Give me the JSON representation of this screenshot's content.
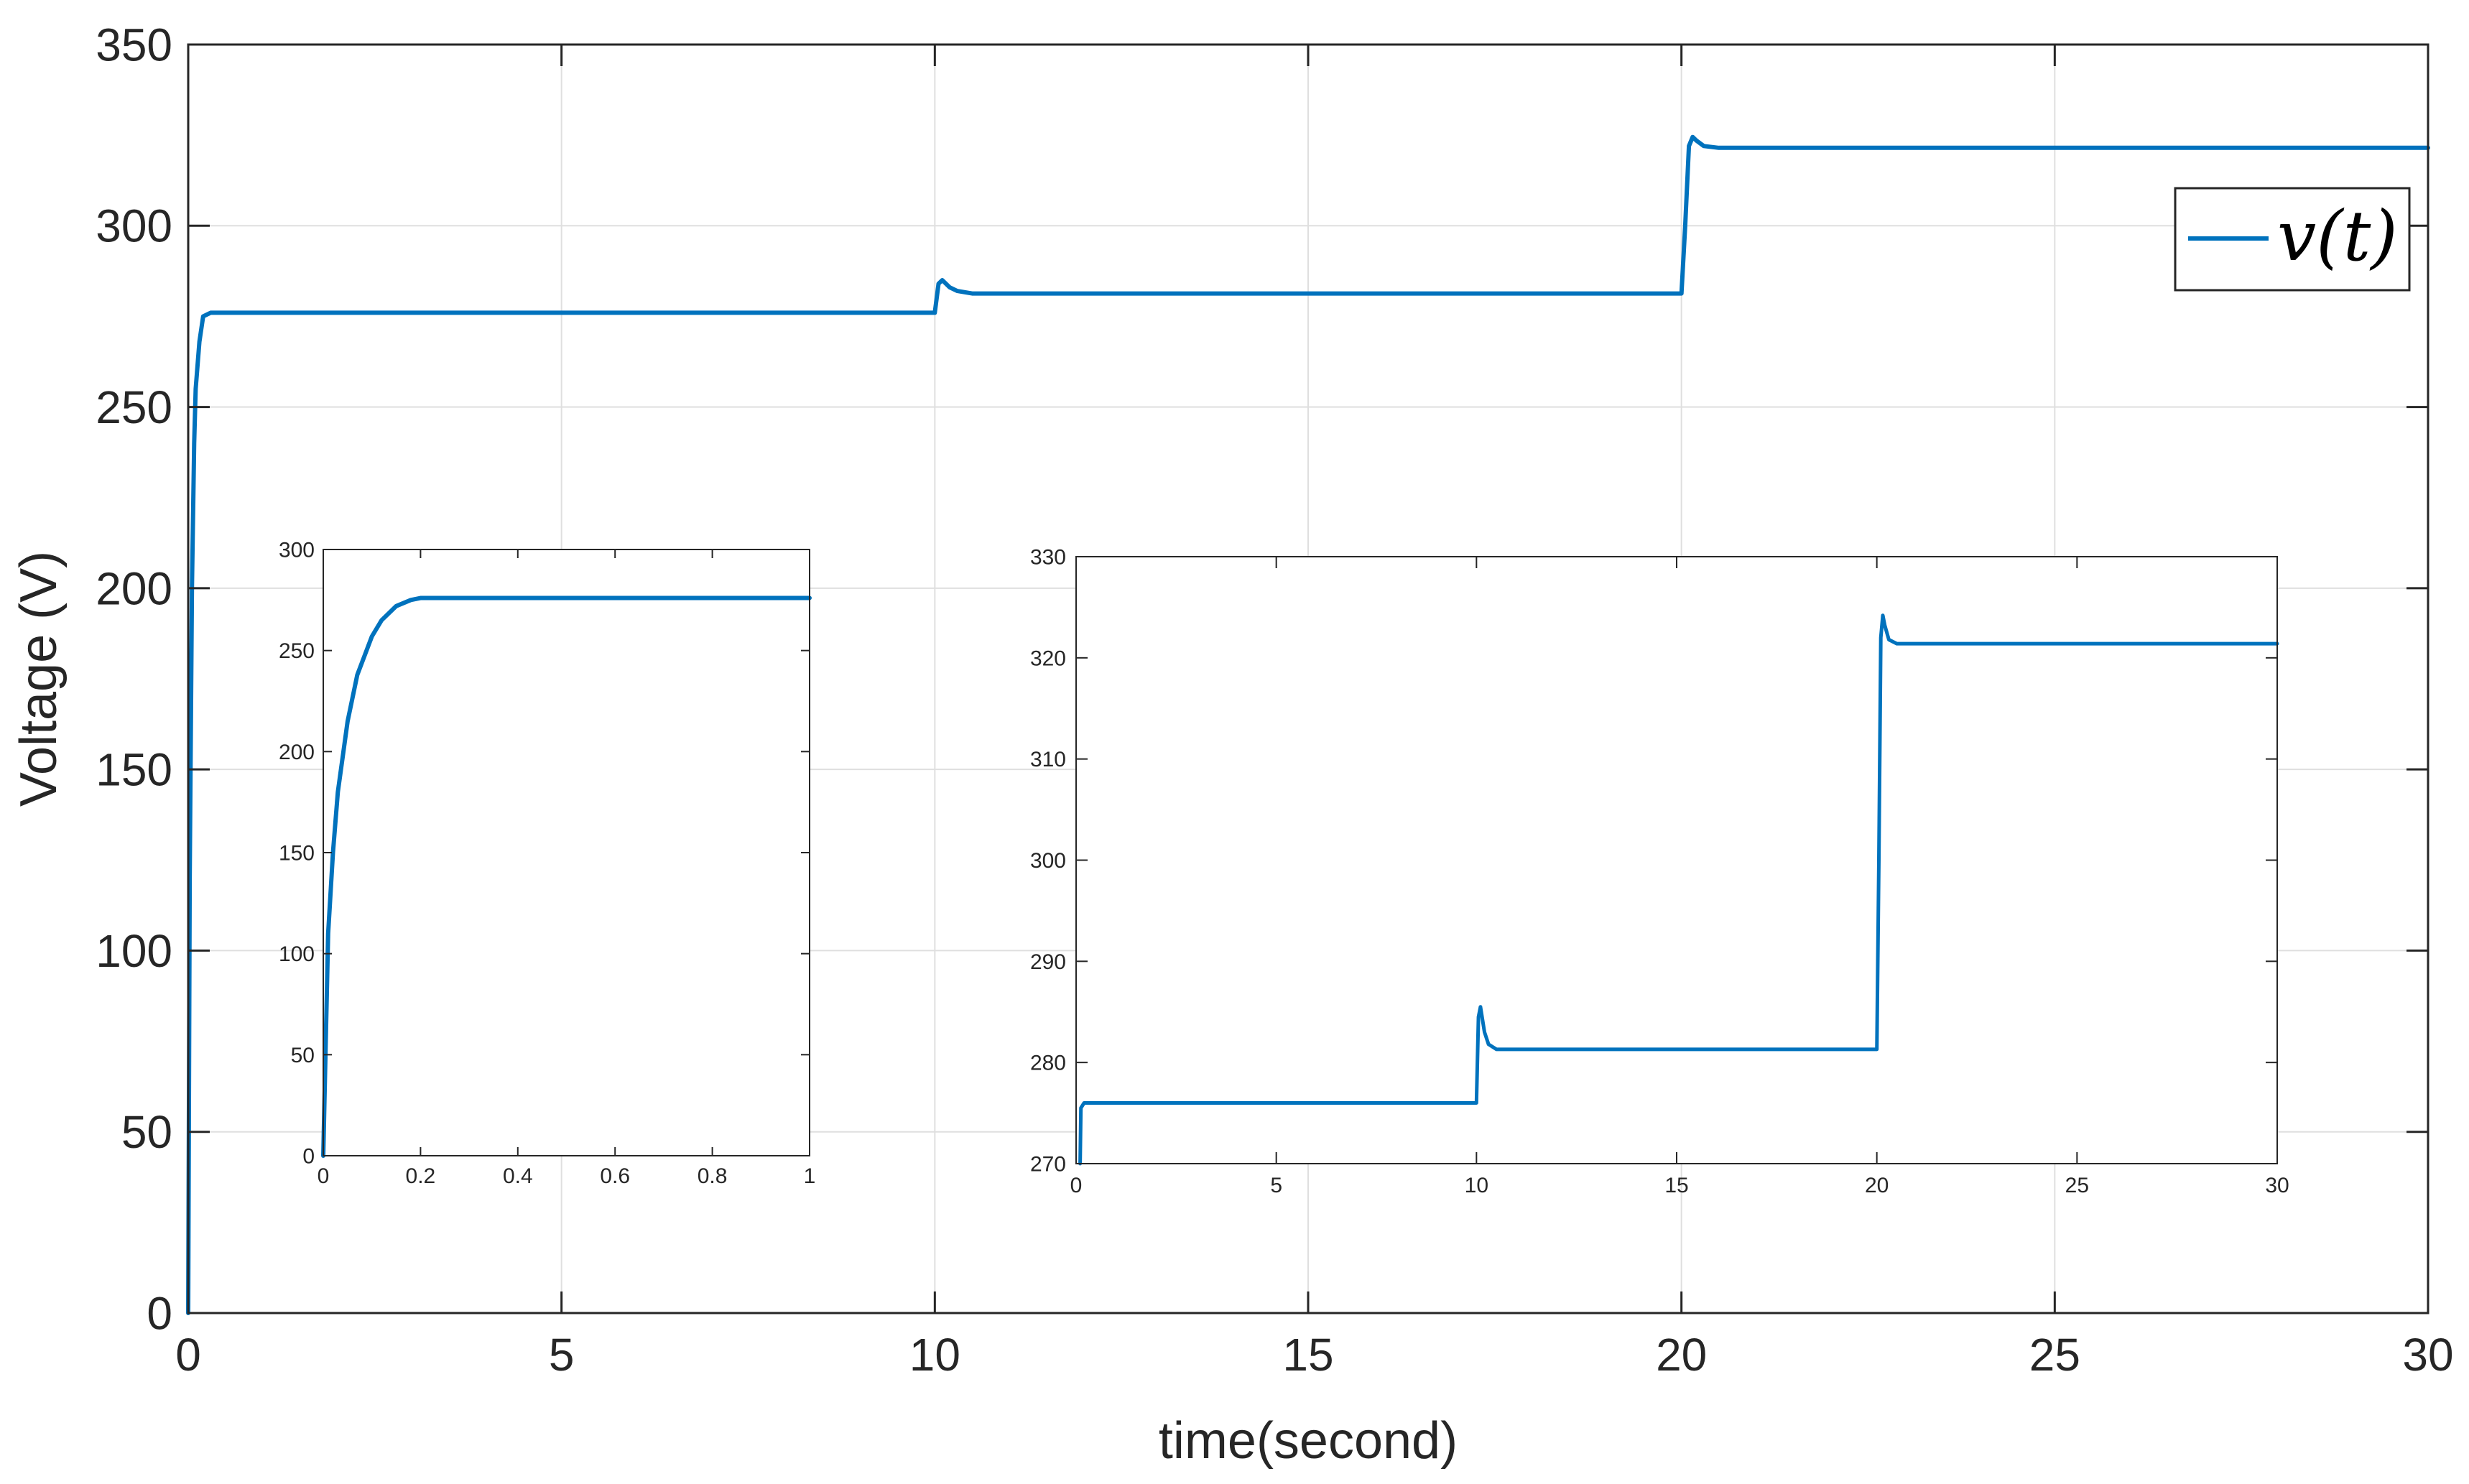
{
  "chart_data": [
    {
      "type": "line",
      "role": "main",
      "xlabel": "time(second)",
      "ylabel": "Voltage (V)",
      "xlim": [
        0,
        30
      ],
      "ylim": [
        0,
        350
      ],
      "xticks": [
        0,
        5,
        10,
        15,
        20,
        25,
        30
      ],
      "xtick_labels": [
        "0",
        "5",
        "10",
        "15",
        "20",
        "25",
        "30"
      ],
      "yticks": [
        0,
        50,
        100,
        150,
        200,
        250,
        300,
        350
      ],
      "ytick_labels": [
        "0",
        "50",
        "100",
        "150",
        "200",
        "250",
        "300",
        "350"
      ],
      "grid": true,
      "legend": {
        "position": "top-right",
        "entries": [
          "v(t)"
        ]
      },
      "series": [
        {
          "name": "v(t)",
          "color": "#0072BD",
          "x": [
            0,
            0.02,
            0.05,
            0.08,
            0.1,
            0.15,
            0.2,
            0.3,
            1,
            5,
            9.95,
            10.0,
            10.05,
            10.1,
            10.2,
            10.3,
            10.5,
            11,
            15,
            19.95,
            20.0,
            20.05,
            20.1,
            20.15,
            20.2,
            20.3,
            20.5,
            21,
            25,
            30
          ],
          "y": [
            0,
            120,
            200,
            240,
            255,
            268,
            275,
            276,
            276,
            276,
            276,
            276,
            284,
            285,
            283,
            282,
            281.3,
            281.3,
            281.3,
            281.3,
            281.3,
            300,
            322,
            324.5,
            323.5,
            322,
            321.5,
            321.5,
            321.5,
            321.5
          ]
        }
      ]
    },
    {
      "type": "line",
      "role": "inset-startup",
      "xlim": [
        0,
        1
      ],
      "ylim": [
        0,
        300
      ],
      "xticks": [
        0,
        0.2,
        0.4,
        0.6,
        0.8,
        1
      ],
      "xtick_labels": [
        "0",
        "0.2",
        "0.4",
        "0.6",
        "0.8",
        "1"
      ],
      "yticks": [
        0,
        50,
        100,
        150,
        200,
        250,
        300
      ],
      "ytick_labels": [
        "0",
        "50",
        "100",
        "150",
        "200",
        "250",
        "300"
      ],
      "grid": false,
      "series": [
        {
          "color": "#0072BD",
          "x": [
            0,
            0.01,
            0.02,
            0.03,
            0.05,
            0.07,
            0.1,
            0.12,
            0.15,
            0.18,
            0.2,
            0.25,
            0.3,
            0.5,
            0.8,
            1
          ],
          "y": [
            0,
            110,
            150,
            180,
            215,
            238,
            257,
            265,
            272,
            275,
            276,
            276,
            276,
            276,
            276,
            276
          ]
        }
      ]
    },
    {
      "type": "line",
      "role": "inset-zoom",
      "xlim": [
        0,
        30
      ],
      "ylim": [
        270,
        330
      ],
      "xticks": [
        0,
        5,
        10,
        15,
        20,
        25,
        30
      ],
      "xtick_labels": [
        "0",
        "5",
        "10",
        "15",
        "20",
        "25",
        "30"
      ],
      "yticks": [
        270,
        280,
        290,
        300,
        310,
        320,
        330
      ],
      "ytick_labels": [
        "270",
        "280",
        "290",
        "300",
        "310",
        "320",
        "330"
      ],
      "grid": false,
      "series": [
        {
          "color": "#0072BD",
          "x": [
            0.1,
            0.12,
            0.2,
            0.3,
            1,
            5,
            9.95,
            10.0,
            10.05,
            10.1,
            10.2,
            10.3,
            10.5,
            11,
            15,
            19.95,
            20.0,
            20.05,
            20.1,
            20.15,
            20.2,
            20.3,
            20.5,
            21,
            25,
            30
          ],
          "y": [
            270,
            275.5,
            276,
            276,
            276,
            276,
            276,
            276,
            284.5,
            285.5,
            283,
            281.8,
            281.3,
            281.3,
            281.3,
            281.3,
            281.3,
            300,
            322,
            324.2,
            323.2,
            321.8,
            321.4,
            321.4,
            321.4,
            321.4
          ]
        }
      ]
    }
  ]
}
